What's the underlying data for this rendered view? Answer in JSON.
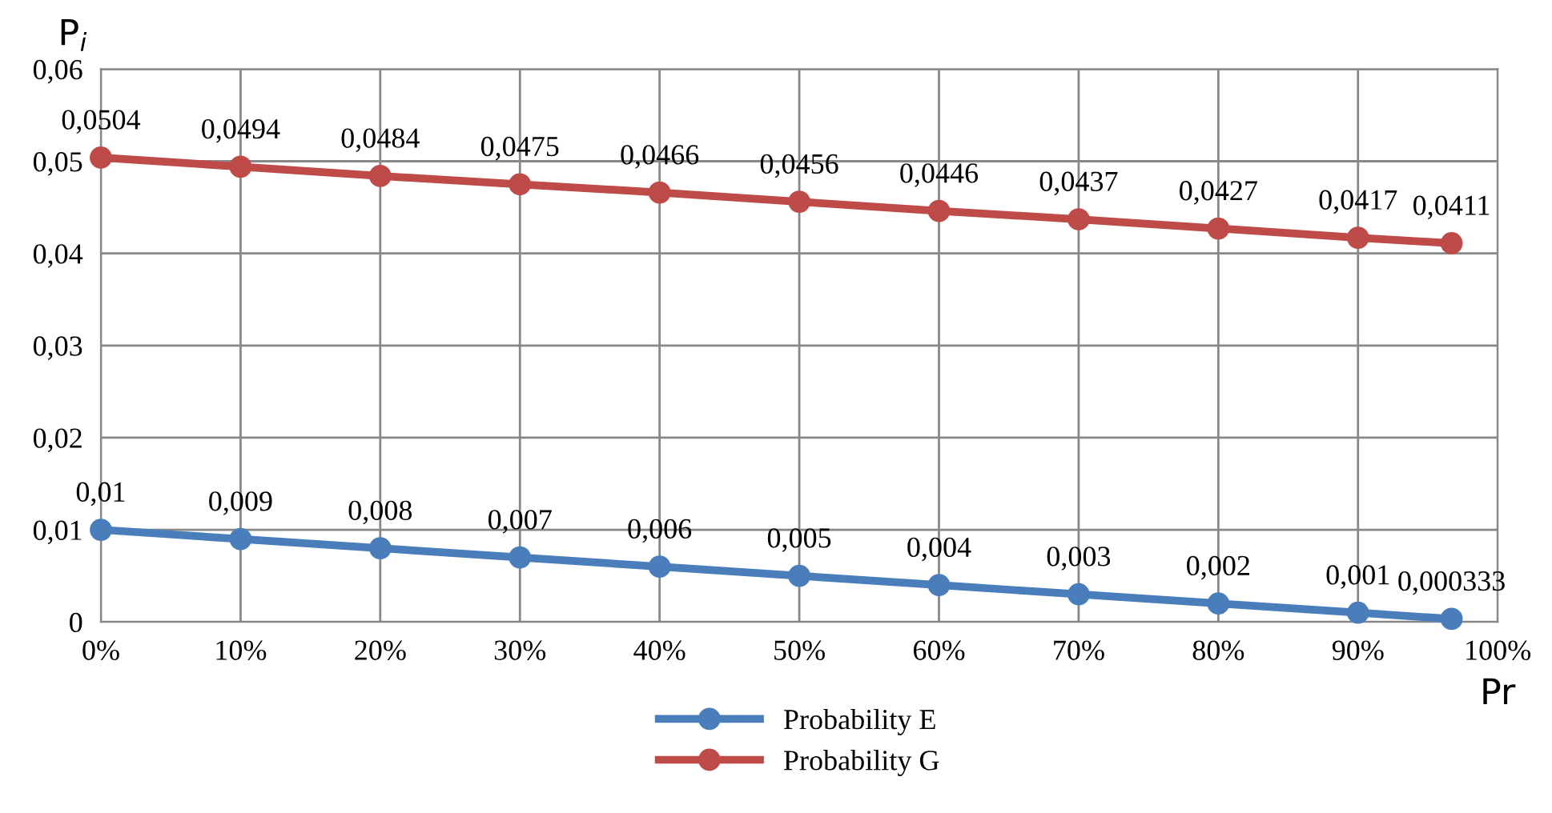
{
  "chart_data": {
    "type": "line",
    "xlabel": "Pr",
    "ylabel": "P$_{i}$",
    "x": [
      0,
      10,
      20,
      30,
      40,
      50,
      60,
      70,
      80,
      90,
      96.7
    ],
    "series": [
      {
        "name": "Probability E",
        "color": "#4a7ebb",
        "values": [
          0.01,
          0.009,
          0.008,
          0.007,
          0.006,
          0.005,
          0.004,
          0.003,
          0.002,
          0.001,
          0.000333
        ],
        "value_labels": [
          "0,01",
          "0,009",
          "0,008",
          "0,007",
          "0,006",
          "0,005",
          "0,004",
          "0,003",
          "0,002",
          "0,001",
          "0,000333"
        ]
      },
      {
        "name": "Probability G",
        "color": "#be4b48",
        "values": [
          0.0504,
          0.0494,
          0.0484,
          0.0475,
          0.0466,
          0.0456,
          0.0446,
          0.0437,
          0.0427,
          0.0417,
          0.0411
        ],
        "value_labels": [
          "0,0504",
          "0,0494",
          "0,0484",
          "0,0475",
          "0,0466",
          "0,0456",
          "0,0446",
          "0,0437",
          "0,0427",
          "0,0417",
          "0,0411"
        ]
      }
    ],
    "xlim": [
      0,
      100
    ],
    "xticks": [
      {
        "value": 0,
        "label": "0%"
      },
      {
        "value": 10,
        "label": "10%"
      },
      {
        "value": 20,
        "label": "20%"
      },
      {
        "value": 30,
        "label": "30%"
      },
      {
        "value": 40,
        "label": "40%"
      },
      {
        "value": 50,
        "label": "50%"
      },
      {
        "value": 60,
        "label": "60%"
      },
      {
        "value": 70,
        "label": "70%"
      },
      {
        "value": 80,
        "label": "80%"
      },
      {
        "value": 90,
        "label": "90%"
      },
      {
        "value": 100,
        "label": "100%"
      }
    ],
    "ylim": [
      0,
      0.06
    ],
    "yticks": [
      {
        "value": 0,
        "label": "0"
      },
      {
        "value": 0.01,
        "label": "0,01"
      },
      {
        "value": 0.02,
        "label": "0,02"
      },
      {
        "value": 0.03,
        "label": "0,03"
      },
      {
        "value": 0.04,
        "label": "0,04"
      },
      {
        "value": 0.05,
        "label": "0,05"
      },
      {
        "value": 0.06,
        "label": "0,06"
      }
    ],
    "grid": true,
    "legend": "bottom",
    "marker": "circle",
    "line_style": "solid"
  }
}
